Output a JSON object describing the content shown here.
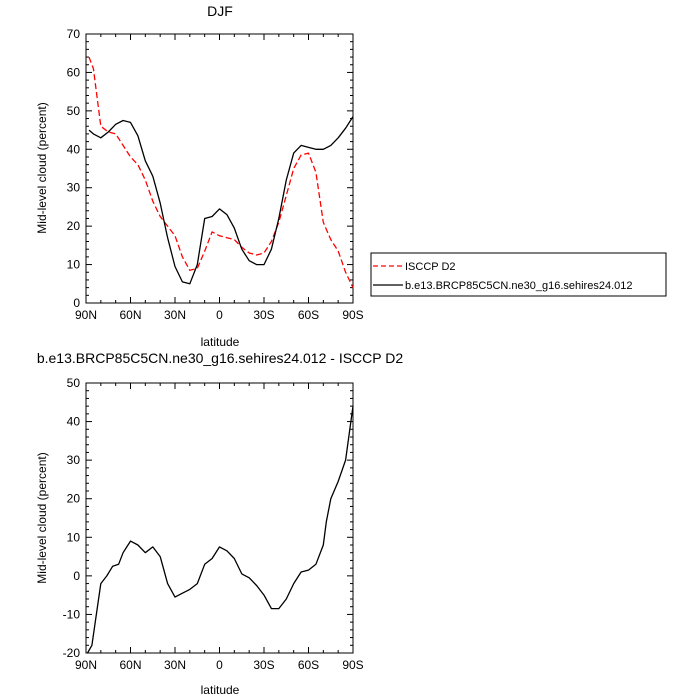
{
  "chart_data": [
    {
      "type": "line",
      "title": "DJF",
      "xlabel": "latitude",
      "ylabel": "Mid-level cloud (percent)",
      "xlim": [
        -90,
        90
      ],
      "ylim": [
        0,
        70
      ],
      "x_ticks": [
        -90,
        -60,
        -30,
        0,
        30,
        60,
        90
      ],
      "x_tick_labels": [
        "90N",
        "60N",
        "30N",
        "0",
        "30S",
        "60S",
        "90S"
      ],
      "y_ticks": [
        0,
        10,
        20,
        30,
        40,
        50,
        60,
        70
      ],
      "y_tick_labels": [
        "0",
        "10",
        "20",
        "30",
        "40",
        "50",
        "60",
        "70"
      ],
      "legend_position": "right",
      "series": [
        {
          "name": "ISCCP D2",
          "color": "#ff0000",
          "dash": "dashed",
          "x": [
            -88,
            -85,
            -80,
            -75,
            -70,
            -65,
            -60,
            -55,
            -50,
            -45,
            -40,
            -35,
            -30,
            -25,
            -20,
            -15,
            -10,
            -5,
            0,
            5,
            10,
            15,
            20,
            25,
            30,
            35,
            40,
            45,
            50,
            55,
            60,
            65,
            70,
            75,
            80,
            85,
            90
          ],
          "values": [
            64,
            61,
            46,
            44.5,
            44,
            41,
            38,
            36,
            32,
            26.5,
            22.5,
            20,
            17.5,
            12,
            8.5,
            9,
            13.5,
            18.5,
            17.5,
            17,
            16.5,
            14.5,
            13,
            12.5,
            13,
            16,
            21,
            28,
            35,
            38.5,
            39,
            34,
            21,
            16.5,
            13.5,
            8,
            4
          ]
        },
        {
          "name": "b.e13.BRCP85C5CN.ne30_g16.sehires24.012",
          "color": "#000000",
          "dash": "solid",
          "x": [
            -88,
            -85,
            -80,
            -75,
            -70,
            -65,
            -60,
            -55,
            -50,
            -45,
            -40,
            -35,
            -30,
            -25,
            -20,
            -15,
            -10,
            -5,
            0,
            5,
            10,
            15,
            20,
            25,
            30,
            35,
            40,
            45,
            50,
            55,
            60,
            65,
            70,
            75,
            80,
            85,
            90
          ],
          "values": [
            45,
            44,
            43,
            44.5,
            46.5,
            47.5,
            47,
            43.5,
            37,
            33,
            26,
            17,
            9.5,
            5.5,
            5,
            10,
            22,
            22.5,
            24.5,
            23,
            19.5,
            14,
            11,
            10,
            10,
            14,
            22,
            32,
            39,
            41,
            40.5,
            40,
            40,
            41,
            43,
            45.5,
            48.5
          ]
        }
      ]
    },
    {
      "type": "line",
      "title": "b.e13.BRCP85C5CN.ne30_g16.sehires24.012 - ISCCP D2",
      "xlabel": "latitude",
      "ylabel": "Mid-level cloud (percent)",
      "xlim": [
        -90,
        90
      ],
      "ylim": [
        -20,
        50
      ],
      "x_ticks": [
        -90,
        -60,
        -30,
        0,
        30,
        60,
        90
      ],
      "x_tick_labels": [
        "90N",
        "60N",
        "30N",
        "0",
        "30S",
        "60S",
        "90S"
      ],
      "y_ticks": [
        -20,
        -10,
        0,
        10,
        20,
        30,
        40,
        50
      ],
      "y_tick_labels": [
        "-20",
        "-10",
        "0",
        "10",
        "20",
        "30",
        "40",
        "50"
      ],
      "series": [
        {
          "color": "#000000",
          "dash": "solid",
          "x": [
            -89,
            -86,
            -80,
            -76,
            -72,
            -68,
            -65,
            -60,
            -55,
            -50,
            -45,
            -40,
            -35,
            -30,
            -25,
            -20,
            -15,
            -10,
            -5,
            0,
            5,
            10,
            15,
            20,
            25,
            30,
            35,
            40,
            45,
            50,
            55,
            60,
            65,
            70,
            72,
            75,
            80,
            85,
            90
          ],
          "values": [
            -20,
            -18,
            -2,
            0,
            2.5,
            3,
            6,
            9,
            8,
            6,
            7.5,
            5,
            -2,
            -5.5,
            -4.5,
            -3.5,
            -2,
            3,
            4.5,
            7.5,
            6.5,
            4.5,
            0.5,
            -0.5,
            -2.5,
            -5,
            -8.5,
            -8.5,
            -6,
            -2,
            1,
            1.5,
            3,
            8,
            14,
            20,
            24.5,
            30,
            44
          ]
        }
      ]
    }
  ]
}
